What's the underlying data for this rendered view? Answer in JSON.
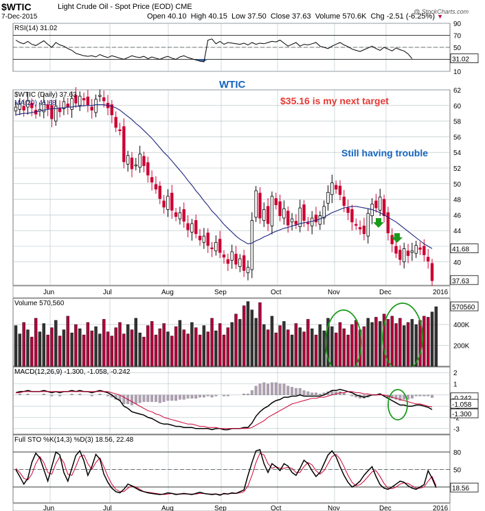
{
  "header": {
    "symbol": "$WTIC",
    "name": "Light Crude Oil - Spot Price (EOD)",
    "exchange": "CME",
    "date": "7-Dec-2015",
    "open": "Open 40.10",
    "high": "High 40.15",
    "low": "Low 37.50",
    "close": "Close 37.63",
    "volume": "Volume 570.6K",
    "chg": "Chg -2.51 (-6.25%)",
    "watermark": "@ StockCharts.com"
  },
  "colors": {
    "up": "#cc0033",
    "down": "#000000",
    "volume_up": "#b0003a",
    "volume_down": "#333333",
    "ma": "#1a237e",
    "annotation_blue": "#1565c0",
    "annotation_red": "#e53935",
    "circle": "#1a9a1a",
    "arrow": "#1a9a1a",
    "panel_bg": "#ffffff",
    "grid": "#b0bec5"
  },
  "x_axis": {
    "months": [
      "Jun",
      "Jul",
      "Aug",
      "Sep",
      "Oct",
      "Nov",
      "Dec",
      "2016"
    ]
  },
  "chart_data": [
    {
      "panel": "rsi",
      "type": "line",
      "title": "RSI(14) 31.02",
      "ylim": [
        10,
        90
      ],
      "yticks": [
        "90",
        "70",
        "50",
        "30",
        "10"
      ],
      "last_label": "31.02",
      "reference_lines": [
        70,
        30
      ],
      "values": [
        62,
        58,
        56,
        60,
        55,
        53,
        57,
        61,
        55,
        50,
        58,
        54,
        52,
        48,
        45,
        40,
        38,
        36,
        35,
        36,
        34,
        38,
        35,
        33,
        36,
        34,
        32,
        30,
        33,
        36,
        34,
        33,
        35,
        31,
        34,
        32,
        30,
        33,
        35,
        32,
        30,
        34,
        36,
        33,
        31,
        29,
        27,
        26,
        62,
        64,
        56,
        60,
        55,
        58,
        57,
        56,
        55,
        57,
        54,
        58,
        55,
        57,
        56,
        58,
        60,
        59,
        62,
        57,
        52,
        55,
        58,
        52,
        55,
        54,
        56,
        58,
        52,
        50,
        48,
        52,
        55,
        58,
        54,
        51,
        47,
        45,
        43,
        46,
        49,
        52,
        48,
        45,
        50,
        47,
        44,
        49,
        46,
        44,
        39,
        31
      ]
    },
    {
      "panel": "price",
      "type": "candlestick",
      "title": "$WTIC (Daily) 37.63",
      "ma_label": "MA(20) 41.68",
      "ylim": [
        37,
        62
      ],
      "yticks": [
        "62",
        "60",
        "58",
        "56",
        "54",
        "52",
        "50",
        "48",
        "46",
        "44",
        "42",
        "40"
      ],
      "last_label": "37.63",
      "ma_last_label": "41.68",
      "close": [
        59.8,
        60.2,
        59.4,
        60.6,
        59.7,
        58.9,
        59.5,
        60.4,
        59.6,
        58.3,
        59.9,
        59.2,
        60.5,
        59.8,
        60.9,
        60.3,
        61.2,
        60.7,
        60.1,
        59.4,
        60.8,
        61.3,
        60.6,
        59.7,
        58.8,
        57.2,
        56.9,
        52.8,
        53.6,
        51.9,
        52.4,
        53.8,
        52.3,
        51.1,
        50.2,
        49.3,
        48.1,
        47.0,
        48.4,
        46.6,
        45.8,
        46.3,
        45.2,
        44.1,
        44.9,
        43.6,
        42.8,
        43.3,
        42.1,
        41.7,
        42.5,
        41.2,
        40.6,
        39.8,
        41.3,
        39.7,
        40.4,
        38.9,
        39.3,
        45.3,
        49.1,
        45.6,
        46.7,
        44.9,
        48.4,
        47.3,
        45.9,
        46.8,
        44.7,
        45.5,
        44.8,
        46.9,
        45.3,
        44.9,
        45.6,
        45.1,
        45.9,
        47.1,
        48.9,
        50.1,
        49.3,
        48.6,
        47.2,
        46.3,
        45.1,
        44.7,
        44.2,
        43.6,
        46.2,
        47.4,
        46.9,
        48.3,
        45.9,
        43.7,
        42.3,
        41.1,
        40.3,
        41.7,
        40.8,
        41.4,
        42.1,
        41.6,
        40.9,
        40.1,
        37.6
      ],
      "ma20": [
        58.8,
        58.9,
        59.0,
        59.0,
        59.1,
        59.2,
        59.3,
        59.4,
        59.5,
        59.6,
        59.6,
        59.7,
        59.7,
        59.8,
        59.8,
        59.9,
        59.9,
        60.0,
        60.0,
        60.0,
        60.1,
        60.1,
        60.1,
        60.0,
        59.9,
        59.7,
        59.4,
        59.0,
        58.6,
        58.2,
        57.7,
        57.3,
        56.8,
        56.3,
        55.8,
        55.2,
        54.6,
        54.0,
        53.5,
        52.9,
        52.3,
        51.7,
        51.1,
        50.4,
        49.8,
        49.1,
        48.5,
        47.8,
        47.2,
        46.5,
        46.0,
        45.4,
        44.8,
        44.3,
        43.8,
        43.3,
        42.9,
        42.6,
        42.3,
        42.4,
        42.7,
        42.9,
        43.2,
        43.4,
        43.7,
        43.9,
        44.1,
        44.3,
        44.4,
        44.6,
        44.7,
        44.9,
        45.0,
        45.1,
        45.2,
        45.3,
        45.5,
        45.7,
        46.0,
        46.3,
        46.5,
        46.7,
        46.9,
        47.0,
        47.1,
        47.1,
        47.0,
        46.9,
        46.8,
        46.7,
        46.5,
        46.3,
        46.0,
        45.7,
        45.4,
        45.1,
        44.7,
        44.3,
        43.9,
        43.5,
        43.1,
        42.7,
        42.3,
        42.0,
        41.7
      ],
      "annotations": [
        "WTIC",
        "$35.16 is my next target",
        "Still having trouble"
      ],
      "markers": [
        "down-arrow",
        "down-arrow"
      ]
    },
    {
      "panel": "volume",
      "type": "bar",
      "title": "Volume 570,560",
      "ylim": [
        0,
        650000
      ],
      "yticks": [
        "400K",
        "200K"
      ],
      "last_label": "570560",
      "values": [
        390000,
        310000,
        420000,
        350000,
        280000,
        460000,
        330000,
        410000,
        300000,
        370000,
        440000,
        290000,
        350000,
        480000,
        320000,
        400000,
        360000,
        300000,
        420000,
        340000,
        380000,
        310000,
        450000,
        330000,
        290000,
        370000,
        420000,
        310000,
        400000,
        350000,
        460000,
        320000,
        280000,
        390000,
        430000,
        300000,
        360000,
        410000,
        330000,
        290000,
        380000,
        440000,
        350000,
        310000,
        420000,
        370000,
        300000,
        390000,
        330000,
        460000,
        340000,
        410000,
        300000,
        370000,
        420000,
        500000,
        450000,
        580000,
        620000,
        540000,
        460000,
        610000,
        400000,
        350000,
        480000,
        320000,
        390000,
        430000,
        350000,
        300000,
        410000,
        370000,
        330000,
        450000,
        360000,
        300000,
        400000,
        340000,
        460000,
        380000,
        320000,
        420000,
        360000,
        300000,
        400000,
        440000,
        350000,
        380000,
        460000,
        420000,
        470000,
        430000,
        500000,
        450000,
        480000,
        410000,
        460000,
        390000,
        420000,
        450000,
        400000,
        440000,
        480000,
        470000,
        520000,
        570560
      ],
      "markers": [
        "circle",
        "circle"
      ]
    },
    {
      "panel": "macd",
      "type": "line",
      "title": "MACD(12,26,9) -1.300, -1.058, -0.242",
      "ylim": [
        -3.5,
        2.5
      ],
      "yticks": [
        "2",
        "1",
        "0",
        "-1",
        "-2",
        "-3"
      ],
      "labels": [
        "-0.242",
        "-1.058",
        "-1.300"
      ],
      "macd": [
        0.2,
        0.3,
        0.3,
        0.4,
        0.3,
        0.3,
        0.3,
        0.4,
        0.3,
        0.2,
        0.3,
        0.2,
        0.3,
        0.3,
        0.4,
        0.3,
        0.4,
        0.3,
        0.3,
        0.2,
        0.3,
        0.4,
        0.3,
        0.2,
        0.0,
        -0.3,
        -0.5,
        -1.0,
        -1.2,
        -1.5,
        -1.6,
        -1.7,
        -1.8,
        -2.0,
        -2.1,
        -2.3,
        -2.5,
        -2.6,
        -2.6,
        -2.7,
        -2.8,
        -2.8,
        -2.9,
        -2.9,
        -2.9,
        -3.0,
        -3.0,
        -3.0,
        -3.0,
        -3.1,
        -3.0,
        -3.0,
        -3.1,
        -3.1,
        -3.0,
        -3.0,
        -3.0,
        -2.9,
        -2.9,
        -2.5,
        -1.9,
        -1.5,
        -1.2,
        -1.0,
        -0.7,
        -0.5,
        -0.4,
        -0.2,
        -0.2,
        -0.1,
        -0.1,
        0.0,
        -0.1,
        -0.1,
        -0.1,
        -0.1,
        -0.1,
        0.0,
        0.2,
        0.4,
        0.4,
        0.5,
        0.4,
        0.3,
        0.2,
        0.0,
        -0.1,
        -0.2,
        -0.1,
        0.0,
        0.0,
        0.1,
        -0.1,
        -0.3,
        -0.5,
        -0.7,
        -0.9,
        -0.9,
        -1.0,
        -1.0,
        -0.9,
        -0.9,
        -1.0,
        -1.1,
        -1.3
      ],
      "signal": [
        0.2,
        0.2,
        0.3,
        0.3,
        0.3,
        0.3,
        0.3,
        0.3,
        0.3,
        0.3,
        0.3,
        0.3,
        0.3,
        0.3,
        0.3,
        0.3,
        0.3,
        0.3,
        0.3,
        0.3,
        0.3,
        0.3,
        0.3,
        0.3,
        0.2,
        0.1,
        0.0,
        -0.2,
        -0.4,
        -0.6,
        -0.8,
        -1.0,
        -1.2,
        -1.4,
        -1.5,
        -1.7,
        -1.8,
        -2.0,
        -2.1,
        -2.2,
        -2.3,
        -2.4,
        -2.5,
        -2.6,
        -2.6,
        -2.7,
        -2.8,
        -2.8,
        -2.9,
        -2.9,
        -2.9,
        -3.0,
        -3.0,
        -3.0,
        -3.0,
        -3.0,
        -3.0,
        -3.0,
        -3.0,
        -2.9,
        -2.7,
        -2.5,
        -2.3,
        -2.0,
        -1.8,
        -1.6,
        -1.4,
        -1.2,
        -1.0,
        -0.8,
        -0.7,
        -0.6,
        -0.5,
        -0.4,
        -0.3,
        -0.3,
        -0.2,
        -0.2,
        -0.1,
        0.0,
        0.1,
        0.2,
        0.2,
        0.3,
        0.3,
        0.2,
        0.2,
        0.1,
        0.1,
        0.0,
        0.0,
        0.0,
        0.0,
        -0.1,
        -0.2,
        -0.3,
        -0.4,
        -0.5,
        -0.6,
        -0.7,
        -0.8,
        -0.8,
        -0.9,
        -1.0,
        -1.058
      ]
    },
    {
      "panel": "sto",
      "type": "line",
      "title": "Full STO %K(14,3) %D(3) 18.56, 22.48",
      "ylim": [
        0,
        100
      ],
      "yticks": [
        "80",
        "50",
        "20"
      ],
      "last_label": "18.56",
      "reference_lines": [
        80,
        20
      ],
      "k": [
        50,
        38,
        25,
        35,
        62,
        78,
        70,
        50,
        30,
        55,
        80,
        75,
        45,
        30,
        52,
        74,
        82,
        65,
        40,
        55,
        76,
        68,
        42,
        28,
        18,
        12,
        10,
        16,
        25,
        22,
        18,
        14,
        12,
        10,
        9,
        8,
        7,
        8,
        10,
        9,
        7,
        8,
        9,
        8,
        7,
        9,
        11,
        9,
        8,
        7,
        8,
        6,
        9,
        8,
        10,
        9,
        12,
        15,
        40,
        62,
        82,
        84,
        60,
        45,
        60,
        55,
        48,
        60,
        56,
        45,
        40,
        52,
        66,
        60,
        48,
        38,
        45,
        60,
        75,
        82,
        72,
        55,
        40,
        28,
        20,
        24,
        30,
        40,
        48,
        55,
        38,
        24,
        18,
        16,
        20,
        25,
        30,
        28,
        22,
        18,
        16,
        20,
        24,
        48,
        35,
        19
      ],
      "d": [
        52,
        45,
        35,
        32,
        42,
        60,
        72,
        62,
        45,
        42,
        60,
        72,
        62,
        42,
        40,
        55,
        72,
        75,
        60,
        50,
        62,
        70,
        55,
        38,
        25,
        16,
        12,
        12,
        18,
        22,
        20,
        16,
        12,
        11,
        10,
        9,
        8,
        7,
        8,
        9,
        8,
        8,
        8,
        8,
        8,
        8,
        9,
        9,
        8,
        8,
        8,
        7,
        8,
        8,
        9,
        9,
        10,
        12,
        22,
        40,
        62,
        78,
        75,
        60,
        52,
        55,
        52,
        52,
        54,
        52,
        45,
        45,
        55,
        62,
        58,
        48,
        42,
        48,
        60,
        72,
        76,
        68,
        55,
        40,
        28,
        22,
        24,
        30,
        38,
        46,
        48,
        38,
        26,
        18,
        17,
        20,
        25,
        27,
        26,
        22,
        18,
        18,
        20,
        30,
        38,
        22.48
      ]
    }
  ]
}
